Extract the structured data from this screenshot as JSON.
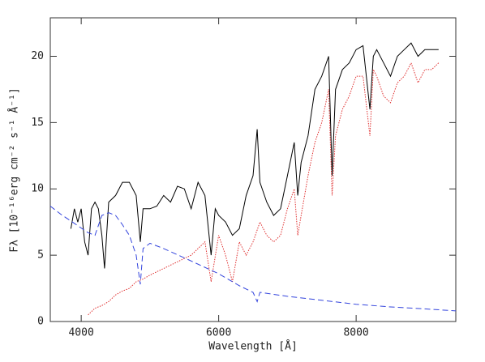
{
  "chart_data": {
    "type": "line",
    "x_label": "Wavelength [Å]",
    "y_label": "Fλ [10⁻¹⁶erg cm⁻² s⁻¹ Å⁻¹]",
    "xlim": [
      3550,
      9450
    ],
    "ylim": [
      0,
      22.9
    ],
    "xticks": [
      4000,
      6000,
      8000
    ],
    "yticks": [
      0,
      5,
      10,
      15,
      20
    ],
    "series": [
      {
        "color": "#000000",
        "style": "solid",
        "x": [
          3850,
          3900,
          3950,
          4000,
          4050,
          4100,
          4150,
          4200,
          4250,
          4300,
          4340,
          4400,
          4500,
          4600,
          4700,
          4800,
          4860,
          4900,
          5000,
          5100,
          5200,
          5300,
          5400,
          5500,
          5600,
          5700,
          5800,
          5890,
          5950,
          6000,
          6100,
          6200,
          6300,
          6400,
          6500,
          6560,
          6600,
          6700,
          6800,
          6900,
          7000,
          7100,
          7150,
          7200,
          7300,
          7400,
          7500,
          7600,
          7650,
          7700,
          7800,
          7900,
          8000,
          8100,
          8200,
          8250,
          8300,
          8400,
          8500,
          8600,
          8700,
          8800,
          8900,
          9000,
          9100,
          9200
        ],
        "values": [
          7,
          8.5,
          7.5,
          8.5,
          6,
          5,
          8.5,
          9,
          8.5,
          6.5,
          4,
          9,
          9.5,
          10.5,
          10.5,
          9.5,
          6,
          8.5,
          8.5,
          8.7,
          9.5,
          9,
          10.2,
          10,
          8.5,
          10.5,
          9.5,
          5,
          8.5,
          8,
          7.5,
          6.5,
          7,
          9.5,
          11,
          14.5,
          10.5,
          9,
          8,
          8.5,
          11,
          13.5,
          9.5,
          12,
          14,
          17.5,
          18.5,
          20,
          11,
          17.5,
          19,
          19.5,
          20.5,
          20.8,
          16,
          20,
          20.5,
          19.5,
          18.5,
          20,
          20.5,
          21,
          20,
          20.5,
          20.5,
          20.5
        ]
      },
      {
        "color": "#e03030",
        "style": "dotted",
        "x": [
          4100,
          4200,
          4300,
          4400,
          4500,
          4600,
          4700,
          4800,
          4900,
          5000,
          5200,
          5400,
          5600,
          5800,
          5890,
          6000,
          6100,
          6200,
          6300,
          6400,
          6500,
          6600,
          6700,
          6800,
          6900,
          7000,
          7100,
          7150,
          7200,
          7300,
          7400,
          7500,
          7600,
          7650,
          7700,
          7800,
          7900,
          8000,
          8100,
          8200,
          8250,
          8300,
          8400,
          8500,
          8600,
          8700,
          8800,
          8900,
          9000,
          9100,
          9200
        ],
        "values": [
          0.5,
          1,
          1.2,
          1.5,
          2,
          2.3,
          2.5,
          3,
          3.2,
          3.5,
          4,
          4.5,
          5,
          6,
          3,
          6.5,
          5,
          3,
          6,
          5,
          6,
          7.5,
          6.5,
          6,
          6.5,
          8.5,
          10,
          6.5,
          8,
          11,
          13.5,
          15,
          17.5,
          9.5,
          14,
          16,
          17,
          18.5,
          18.5,
          14,
          19,
          18.5,
          17,
          16.5,
          18,
          18.5,
          19.5,
          18,
          19,
          19,
          19.5
        ]
      },
      {
        "color": "#3344dd",
        "style": "dashed",
        "x": [
          3550,
          3700,
          3900,
          4100,
          4200,
          4300,
          4400,
          4500,
          4600,
          4700,
          4800,
          4860,
          4900,
          5000,
          5200,
          5500,
          6000,
          6300,
          6500,
          6560,
          6600,
          7000,
          7500,
          8000,
          8500,
          9000,
          9450
        ],
        "values": [
          8.7,
          8.1,
          7.4,
          6.7,
          6.5,
          8,
          8.2,
          8,
          7.3,
          6.5,
          5,
          2.8,
          5.5,
          5.9,
          5.5,
          4.8,
          3.6,
          2.7,
          2.2,
          1.5,
          2.2,
          1.9,
          1.6,
          1.3,
          1.1,
          0.95,
          0.8
        ]
      }
    ]
  }
}
